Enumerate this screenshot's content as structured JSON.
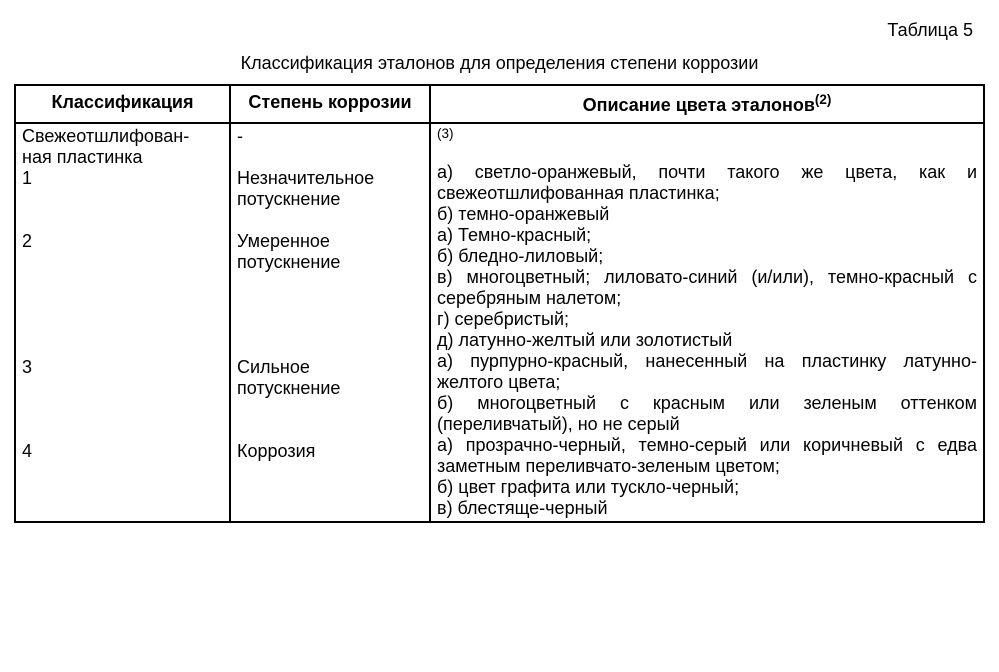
{
  "table_number": "Таблица 5",
  "table_title": "Классификация эталонов для определения степени коррозии",
  "headers": {
    "col1": "Классификация",
    "col2": "Степень коррозии",
    "col3": "Описание цвета эталонов",
    "col3_sup": "(2)"
  },
  "rows": {
    "r0": {
      "class": "Свежеотшлифован-",
      "class2": "ная пластинка",
      "degree": "-",
      "desc_sup": "(3)"
    },
    "r1": {
      "class": "1",
      "degree1": "Незначительное",
      "degree2": "потускнение",
      "desc_a": "а) светло-оранжевый, почти такого же цвета, как и свежеотшлифованная пластинка;",
      "desc_b": "б) темно-оранжевый"
    },
    "r2": {
      "class": "2",
      "degree1": "Умеренное",
      "degree2": "потускнение",
      "desc_a": "а) Темно-красный;",
      "desc_b": "б) бледно-лиловый;",
      "desc_c": "в) многоцветный; лиловато-синий (и/или), темно-красный с серебряным налетом;",
      "desc_d": "г) серебристый;",
      "desc_e": "д) латунно-желтый или золотистый"
    },
    "r3": {
      "class": "3",
      "degree1": "Сильное",
      "degree2": "потускнение",
      "desc_a": "а) пурпурно-красный, нанесенный на пластинку латунно-желтого цвета;",
      "desc_b": "б) многоцветный с красным или зеленым оттенком (переливчатый), но не серый"
    },
    "r4": {
      "class": "4",
      "degree1": "Коррозия",
      "desc_a": "а) прозрачно-черный, темно-серый или коричневый с едва заметным переливчато-зеленым цветом;",
      "desc_b": "б) цвет графита или тускло-черный;",
      "desc_c": "в) блестяще-черный"
    }
  }
}
